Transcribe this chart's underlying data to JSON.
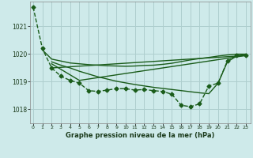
{
  "title": "Graphe pression niveau de la mer (hPa)",
  "bg_color": "#ceeaea",
  "grid_color": "#aecece",
  "line_color": "#1a5c1a",
  "x_ticks": [
    0,
    1,
    2,
    3,
    4,
    5,
    6,
    7,
    8,
    9,
    10,
    11,
    12,
    13,
    14,
    15,
    16,
    17,
    18,
    19,
    20,
    21,
    22,
    23
  ],
  "y_ticks": [
    1018,
    1019,
    1020,
    1021
  ],
  "ylim": [
    1017.5,
    1021.9
  ],
  "xlim": [
    -0.3,
    23.5
  ],
  "series": {
    "line_dashed": {
      "x": [
        0,
        1,
        2,
        3,
        4,
        5,
        6,
        7,
        8,
        9,
        10,
        11,
        12,
        13,
        14,
        15,
        16,
        17,
        18,
        19,
        20,
        21,
        22,
        23
      ],
      "y": [
        1021.7,
        1020.2,
        1019.5,
        1019.2,
        1019.05,
        1018.95,
        1018.68,
        1018.65,
        1018.7,
        1018.75,
        1018.75,
        1018.7,
        1018.72,
        1018.68,
        1018.65,
        1018.55,
        1018.15,
        1018.1,
        1018.2,
        1018.85,
        1018.95,
        1019.75,
        1019.95,
        1019.95
      ],
      "marker": "D",
      "linestyle": "--",
      "linewidth": 1.0,
      "markersize": 2.5
    },
    "line_flat": {
      "x": [
        1,
        2,
        3,
        4,
        5,
        6,
        7,
        8,
        9,
        10,
        11,
        12,
        13,
        14,
        15,
        16,
        17,
        18,
        19,
        20,
        21,
        22,
        23
      ],
      "y": [
        1020.15,
        1019.82,
        1019.75,
        1019.68,
        1019.65,
        1019.62,
        1019.6,
        1019.58,
        1019.57,
        1019.56,
        1019.57,
        1019.59,
        1019.6,
        1019.63,
        1019.67,
        1019.73,
        1019.79,
        1019.84,
        1019.88,
        1019.93,
        1019.97,
        1020.0,
        1020.0
      ],
      "marker": null,
      "linestyle": "-",
      "linewidth": 1.0
    },
    "line_diag1": {
      "x": [
        2,
        3,
        4,
        5,
        6,
        7,
        8,
        9,
        10,
        11,
        12,
        13,
        14,
        15,
        16,
        17,
        18,
        19,
        20,
        21,
        22,
        23
      ],
      "y": [
        1019.72,
        1019.6,
        1019.5,
        1019.38,
        1019.28,
        1019.18,
        1019.1,
        1019.02,
        1018.96,
        1018.9,
        1018.85,
        1018.8,
        1018.76,
        1018.72,
        1018.68,
        1018.64,
        1018.6,
        1018.57,
        1018.95,
        1019.72,
        1019.93,
        1020.0
      ],
      "marker": null,
      "linestyle": "-",
      "linewidth": 1.0
    },
    "line_diag2": {
      "x": [
        2,
        5,
        23
      ],
      "y": [
        1019.65,
        1019.05,
        1019.95
      ],
      "marker": null,
      "linestyle": "-",
      "linewidth": 1.0
    },
    "line_diag3": {
      "x": [
        2,
        23
      ],
      "y": [
        1019.5,
        1019.95
      ],
      "marker": null,
      "linestyle": "-",
      "linewidth": 1.0
    }
  }
}
